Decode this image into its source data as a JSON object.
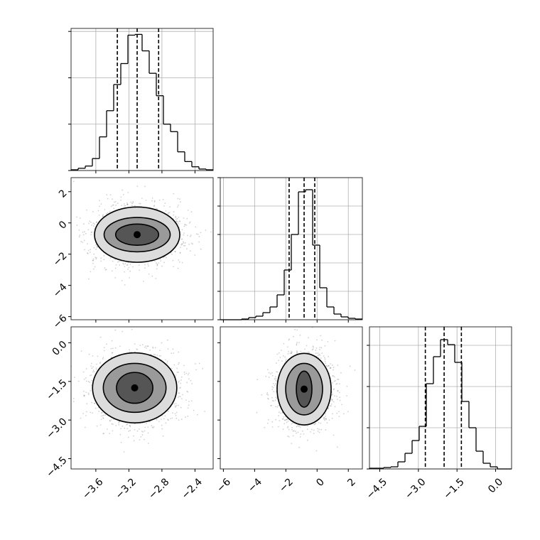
{
  "chart_data": {
    "type": "corner",
    "grid": true,
    "parameters": [
      {
        "lim": [
          -3.9,
          -2.18
        ],
        "ticks": [
          {
            "value": -3.6,
            "label": "−3.6"
          },
          {
            "value": -3.2,
            "label": "−3.2"
          },
          {
            "value": -2.8,
            "label": "−2.8"
          },
          {
            "value": -2.4,
            "label": "−2.4"
          }
        ],
        "bins": [
          -3.9,
          -3.814,
          -3.728,
          -3.642,
          -3.556,
          -3.47,
          -3.384,
          -3.298,
          -3.212,
          -3.126,
          -3.04,
          -2.954,
          -2.868,
          -2.782,
          -2.696,
          -2.61,
          -2.524,
          -2.438,
          -2.352,
          -2.266,
          -2.18
        ],
        "counts": [
          1,
          3,
          6,
          16,
          45,
          80,
          115,
          143,
          181,
          182,
          160,
          130,
          100,
          62,
          52,
          25,
          12,
          5,
          2,
          1
        ],
        "count_lim": [
          0,
          190
        ],
        "count_ticks": [
          0,
          62,
          124,
          186
        ],
        "quantiles": [
          -3.34,
          -3.1,
          -2.84
        ]
      },
      {
        "lim": [
          -6.2,
          2.9
        ],
        "ticks": [
          {
            "value": -6,
            "label": "−6"
          },
          {
            "value": -4,
            "label": "−4"
          },
          {
            "value": -2,
            "label": "−2"
          },
          0,
          2
        ],
        "bins": [
          -6.2,
          -5.745,
          -5.29,
          -4.835,
          -4.38,
          -3.925,
          -3.47,
          -3.015,
          -2.56,
          -2.105,
          -1.65,
          -1.195,
          -0.74,
          -0.285,
          0.17,
          0.625,
          1.08,
          1.535,
          1.99,
          2.445,
          2.9
        ],
        "counts": [
          0,
          0,
          0,
          1,
          3,
          5,
          10,
          18,
          35,
          70,
          120,
          180,
          183,
          105,
          45,
          18,
          8,
          4,
          2,
          1
        ],
        "count_lim": [
          0,
          200
        ],
        "count_ticks": [
          0,
          40,
          80,
          120,
          160,
          200
        ],
        "quantiles": [
          -1.79,
          -0.83,
          -0.15
        ]
      },
      {
        "lim": [
          -4.9,
          0.62
        ],
        "ticks": [
          {
            "value": -4.5,
            "label": "−4.5"
          },
          {
            "value": -3,
            "label": "−3.0"
          },
          {
            "value": -1.5,
            "label": "−1.5"
          },
          {
            "value": 0,
            "label": "0.0"
          }
        ],
        "bins": [
          -4.9,
          -4.624,
          -4.348,
          -4.072,
          -3.796,
          -3.52,
          -3.244,
          -2.968,
          -2.692,
          -2.416,
          -2.14,
          -1.864,
          -1.588,
          -1.312,
          -1.036,
          -0.76,
          -0.484,
          -0.208,
          0.068,
          0.344,
          0.62
        ],
        "counts": [
          1,
          1,
          2,
          3,
          10,
          22,
          40,
          60,
          120,
          158,
          182,
          175,
          150,
          95,
          58,
          25,
          8,
          3,
          0,
          0
        ],
        "count_lim": [
          0,
          200
        ],
        "count_ticks": [
          0,
          58,
          116,
          174
        ],
        "quantiles": [
          -2.73,
          -2.0,
          -1.33
        ]
      }
    ],
    "pairs": [
      {
        "center": [
          -3.1,
          -0.75
        ],
        "contours": [
          {
            "rx": 0.516,
            "ry": 1.77
          },
          {
            "rx": 0.4,
            "ry": 1.1
          },
          {
            "rx": 0.26,
            "ry": 0.68
          }
        ]
      },
      {
        "center": [
          -3.13,
          -1.75
        ],
        "contours": [
          {
            "rx": 0.51,
            "ry": 1.36
          },
          {
            "rx": 0.38,
            "ry": 0.95
          },
          {
            "rx": 0.22,
            "ry": 0.6
          }
        ]
      },
      {
        "center": [
          -0.83,
          -1.8
        ],
        "contours": [
          {
            "rx": 1.73,
            "ry": 1.39
          },
          {
            "rx": 1.18,
            "ry": 1.0
          },
          {
            "rx": 0.5,
            "ry": 0.7
          }
        ]
      }
    ]
  }
}
